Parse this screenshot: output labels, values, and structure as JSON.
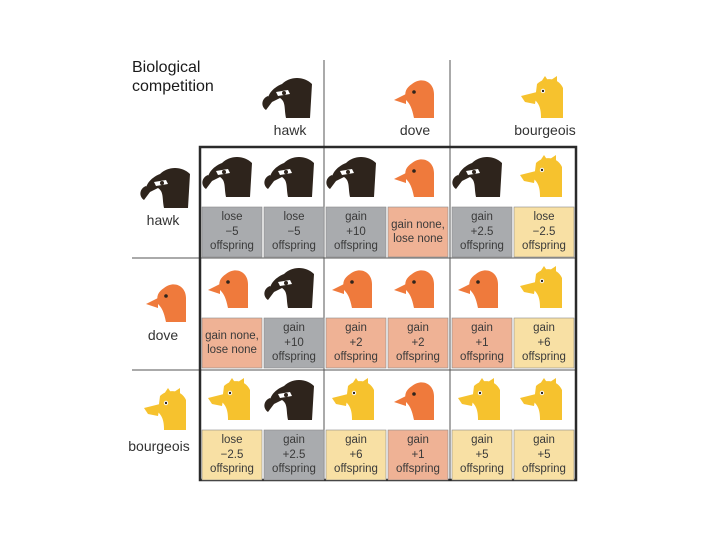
{
  "title": "Biological\ncompetition",
  "strategies": [
    "hawk",
    "dove",
    "bourgeois"
  ],
  "colors": {
    "hawk_fill": "#a9abae",
    "dove_fill": "#efb295",
    "bourgeois_fill": "#f8e0a4",
    "hawk_head": "#2e241c",
    "dove_head": "#ef7a3c",
    "bourgeois_head": "#f6c22e"
  },
  "matrix": [
    {
      "row": "hawk",
      "cells": [
        {
          "col": "hawk",
          "left": {
            "strategy": "hawk",
            "text": "lose\n−5\noffspring"
          },
          "right": {
            "strategy": "hawk",
            "text": "lose\n−5\noffspring"
          }
        },
        {
          "col": "dove",
          "left": {
            "strategy": "hawk",
            "text": "gain\n+10\noffspring"
          },
          "right": {
            "strategy": "dove",
            "text": "gain none,\nlose none"
          }
        },
        {
          "col": "bourgeois",
          "left": {
            "strategy": "hawk",
            "text": "gain\n+2.5\noffspring"
          },
          "right": {
            "strategy": "bourgeois",
            "text": "lose\n−2.5\noffspring"
          }
        }
      ]
    },
    {
      "row": "dove",
      "cells": [
        {
          "col": "hawk",
          "left": {
            "strategy": "dove",
            "text": "gain none,\nlose none"
          },
          "right": {
            "strategy": "hawk",
            "text": "gain\n+10\noffspring"
          }
        },
        {
          "col": "dove",
          "left": {
            "strategy": "dove",
            "text": "gain\n+2\noffspring"
          },
          "right": {
            "strategy": "dove",
            "text": "gain\n+2\noffspring"
          }
        },
        {
          "col": "bourgeois",
          "left": {
            "strategy": "dove",
            "text": "gain\n+1\noffspring"
          },
          "right": {
            "strategy": "bourgeois",
            "text": "gain\n+6\noffspring"
          }
        }
      ]
    },
    {
      "row": "bourgeois",
      "cells": [
        {
          "col": "hawk",
          "left": {
            "strategy": "bourgeois",
            "text": "lose\n−2.5\noffspring"
          },
          "right": {
            "strategy": "hawk",
            "text": "gain\n+2.5\noffspring"
          }
        },
        {
          "col": "dove",
          "left": {
            "strategy": "bourgeois",
            "text": "gain\n+6\noffspring"
          },
          "right": {
            "strategy": "dove",
            "text": "gain\n+1\noffspring"
          }
        },
        {
          "col": "bourgeois",
          "left": {
            "strategy": "bourgeois",
            "text": "gain\n+5\noffspring"
          },
          "right": {
            "strategy": "bourgeois",
            "text": "gain\n+5\noffspring"
          }
        }
      ]
    }
  ]
}
